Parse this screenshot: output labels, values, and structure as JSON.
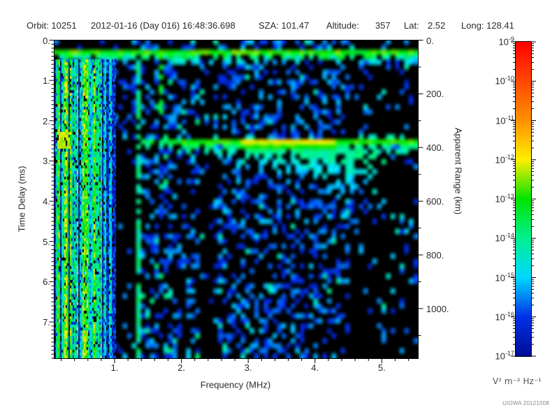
{
  "header": {
    "items": [
      {
        "text": "Orbit: 10251"
      },
      {
        "text": "2012-01-16 (Day 016) 16:48:36.698"
      },
      {
        "text": "SZA: 101.47"
      },
      {
        "text": "Altitude:"
      },
      {
        "text": "357"
      },
      {
        "text": "Lat:"
      },
      {
        "text": "2.52"
      },
      {
        "text": "Long: 128.41"
      }
    ]
  },
  "footer": {
    "credit": "UIOWA 20121008"
  },
  "chart_data": {
    "type": "heatmap",
    "title": "",
    "xlabel": "Frequency (MHz)",
    "ylabel_left": "Time Delay (ms)",
    "ylabel_right": "Apparent Range (km)",
    "x_range_mhz": [
      0.1,
      5.54
    ],
    "y_range_ms": [
      0.0,
      7.9
    ],
    "x_ticks": [
      "1.",
      "2.",
      "3.",
      "4.",
      "5."
    ],
    "x_tick_values": [
      1,
      2,
      3,
      4,
      5
    ],
    "x_minor_step_mhz": 0.2,
    "y_ticks_left": [
      "0.",
      "1.",
      "2.",
      "3.",
      "4.",
      "5.",
      "6.",
      "7."
    ],
    "y_tick_values_left": [
      0,
      1,
      2,
      3,
      4,
      5,
      6,
      7
    ],
    "y_minor_step_ms": 0.1,
    "y_ticks_right": [
      "0.",
      "200.",
      "400.",
      "600.",
      "800.",
      "1000."
    ],
    "y_tick_values_right": [
      0,
      200,
      400,
      600,
      800,
      1000
    ],
    "y_minor_step_km": 100,
    "range_km_per_ms": 150,
    "grid": false,
    "background": "#000000",
    "features": [
      {
        "name": "local-plasma-band",
        "delay_ms": 0.35,
        "freq_mhz": [
          0.1,
          5.54
        ],
        "power": 1e-13
      },
      {
        "name": "ionospheric-echo-trace",
        "delay_ms": 2.6,
        "apparent_range_km": 390,
        "freq_mhz": [
          1.4,
          5.54
        ],
        "peak_freq_mhz": [
          2.9,
          4.35
        ],
        "peak_power": 5e-13
      },
      {
        "name": "echo-left-blob",
        "delay_ms": 2.45,
        "freq_mhz": [
          0.15,
          0.33
        ],
        "power": 3e-13
      },
      {
        "name": "low-freq-interference-stripes",
        "freq_mhz": [
          0.1,
          1.0
        ],
        "delay_ms": [
          0.45,
          7.9
        ],
        "power": 1e-14
      },
      {
        "name": "rfi-line",
        "freq_mhz": 1.34,
        "power": 5e-15
      },
      {
        "name": "rfi-line-short",
        "freq_mhz": 1.7,
        "delay_ms": [
          0.3,
          1.8
        ],
        "power": 5e-14
      },
      {
        "name": "diffuse-scatter-fan",
        "freq_mhz": [
          2.5,
          4.6
        ],
        "delay_ms": [
          2.7,
          4.6
        ],
        "power": 1e-14
      },
      {
        "name": "noise-speckle-floor",
        "power": 3e-17
      },
      {
        "name": "quiet-gaps",
        "freq_mhz": [
          [
            0.95,
            1.3
          ],
          [
            2.25,
            2.46
          ],
          [
            4.55,
            5.54
          ]
        ]
      }
    ]
  },
  "colorbar": {
    "unit": "V² m⁻² Hz⁻¹",
    "scale": "log",
    "max": "1e-9",
    "min": "1e-17",
    "tick_exponents": [
      -9,
      -10,
      -11,
      -12,
      -13,
      -14,
      -15,
      -16,
      -17
    ],
    "colormap": [
      {
        "v": -17,
        "color": "#000d96"
      },
      {
        "v": -16,
        "color": "#0030e8"
      },
      {
        "v": -15,
        "color": "#00d8ff"
      },
      {
        "v": -14,
        "color": "#00f090"
      },
      {
        "v": -13,
        "color": "#00e400"
      },
      {
        "v": -12,
        "color": "#ffee00"
      },
      {
        "v": -11,
        "color": "#ff9100"
      },
      {
        "v": -10,
        "color": "#ff4800"
      },
      {
        "v": -9,
        "color": "#ff0000"
      }
    ]
  }
}
